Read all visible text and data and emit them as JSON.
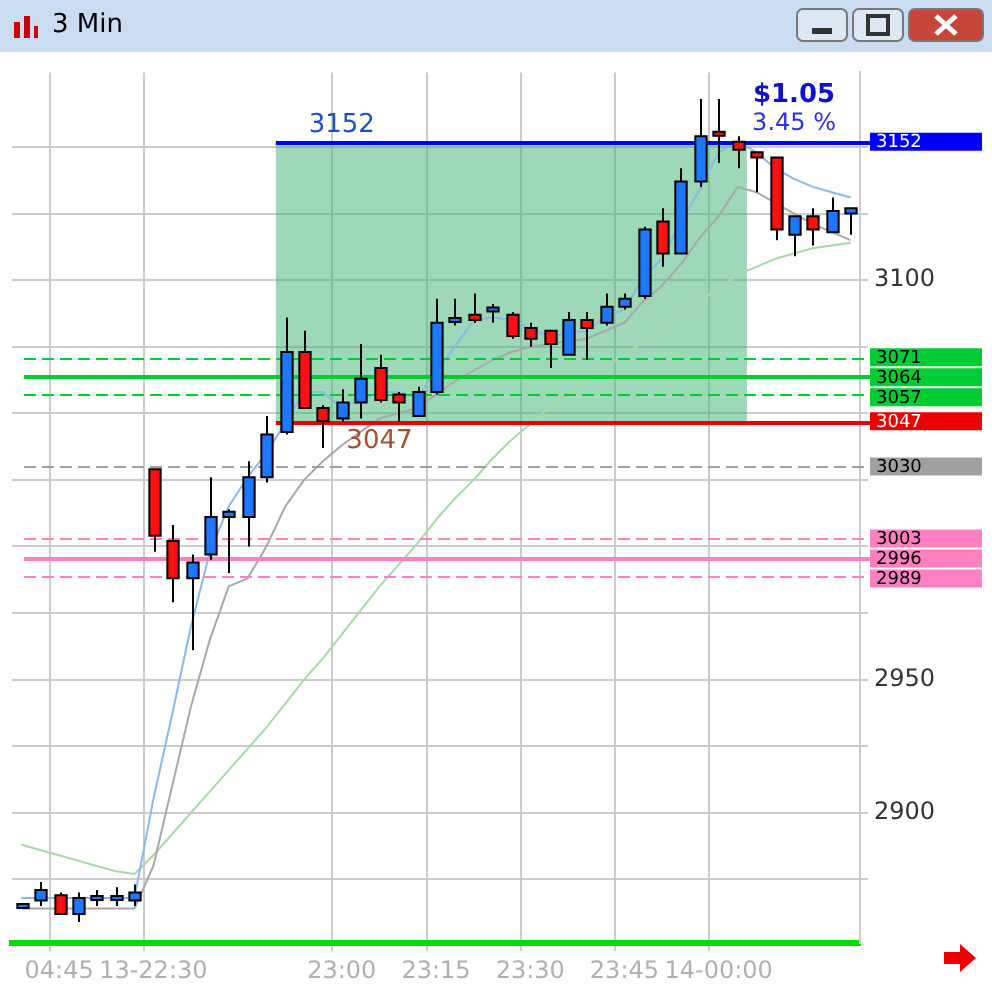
{
  "chart_data": {
    "type": "candlestick",
    "title": "3 Min",
    "categories": [
      null,
      null,
      "04:45",
      null,
      null,
      null,
      null,
      "13-22:30",
      null,
      null,
      null,
      null,
      null,
      null,
      null,
      null,
      null,
      "23:00",
      null,
      null,
      null,
      null,
      "23:15",
      null,
      null,
      null,
      null,
      "23:30",
      null,
      null,
      null,
      null,
      "23:45",
      null,
      null,
      null,
      null,
      "14-00:00",
      null,
      null,
      null,
      null,
      null,
      null,
      null
    ],
    "ohlc": [
      [
        2865,
        2866,
        2864,
        2865
      ],
      [
        2867,
        2874,
        2865,
        2871
      ],
      [
        2869,
        2870,
        2862,
        2862
      ],
      [
        2862,
        2870,
        2859,
        2868
      ],
      [
        2868,
        2871,
        2865,
        2868
      ],
      [
        2868,
        2872,
        2865,
        2868
      ],
      [
        2867,
        2873,
        2865,
        2870
      ],
      [
        3029,
        3029,
        2998,
        3004
      ],
      [
        3002,
        3008,
        2979,
        2988
      ],
      [
        2988,
        2997,
        2961,
        2994
      ],
      [
        2997,
        3026,
        2995,
        3011
      ],
      [
        3011,
        3014,
        2990,
        3013
      ],
      [
        3011,
        3032,
        3000,
        3026
      ],
      [
        3026,
        3049,
        3024,
        3042
      ],
      [
        3043,
        3086,
        3042,
        3073
      ],
      [
        3073,
        3081,
        3052,
        3052
      ],
      [
        3052,
        3053,
        3037,
        3047
      ],
      [
        3048,
        3059,
        3047,
        3054
      ],
      [
        3054,
        3076,
        3048,
        3063
      ],
      [
        3067,
        3072,
        3054,
        3055
      ],
      [
        3057,
        3058,
        3047,
        3054
      ],
      [
        3049,
        3060,
        3049,
        3058
      ],
      [
        3058,
        3093,
        3057,
        3084
      ],
      [
        3084,
        3093,
        3083,
        3085
      ],
      [
        3087,
        3095,
        3084,
        3085
      ],
      [
        3089,
        3091,
        3084,
        3089
      ],
      [
        3087,
        3088,
        3078,
        3079
      ],
      [
        3082,
        3084,
        3075,
        3078
      ],
      [
        3081,
        3081,
        3067,
        3076
      ],
      [
        3072,
        3088,
        3072,
        3085
      ],
      [
        3085,
        3088,
        3070,
        3082
      ],
      [
        3084,
        3095,
        3083,
        3090
      ],
      [
        3090,
        3095,
        3089,
        3093
      ],
      [
        3094,
        3120,
        3093,
        3119
      ],
      [
        3122,
        3127,
        3105,
        3110
      ],
      [
        3110,
        3142,
        3110,
        3137
      ],
      [
        3137,
        3168,
        3135,
        3154
      ],
      [
        3155,
        3168,
        3144,
        3154
      ],
      [
        3152,
        3154,
        3142,
        3149
      ],
      [
        3148,
        3148,
        3133,
        3146
      ],
      [
        3146,
        3146,
        3115,
        3119
      ],
      [
        3117,
        3124,
        3109,
        3124
      ],
      [
        3124,
        3127,
        3113,
        3119
      ],
      [
        3118,
        3131,
        3118,
        3126
      ],
      [
        3125,
        3127,
        3117,
        3127
      ]
    ],
    "series": [
      {
        "type": "line",
        "color": "#8ab8e8",
        "values": [
          2868,
          2868,
          2868,
          2868,
          2868,
          2868,
          2868,
          2905,
          2937,
          2970,
          2998,
          3015,
          3026,
          3035,
          null,
          3058,
          3058,
          3052,
          3055,
          3058,
          3058,
          3056,
          null,
          3075,
          3085,
          3086,
          3085,
          3082,
          3079,
          3080,
          3081,
          3086,
          3089,
          3101,
          3108,
          3122,
          3134,
          3148,
          3152,
          3148,
          3142,
          3138,
          3135,
          3133,
          3131
        ]
      },
      {
        "type": "line",
        "color": "#a8a8a8",
        "values": [
          2864,
          2864,
          2864,
          2864,
          2864,
          2864,
          2864,
          2880,
          2910,
          2940,
          2965,
          2985,
          2988,
          3000,
          3015,
          3025,
          3032,
          3038,
          3043,
          3048,
          3050,
          3052,
          3057,
          3062,
          3066,
          3070,
          3073,
          3075,
          3076,
          3077,
          3078,
          3081,
          3084,
          3092,
          3098,
          3106,
          3116,
          3124,
          3135,
          3133,
          3129,
          3125,
          3121,
          3118,
          3115
        ]
      },
      {
        "type": "line",
        "color": "#a8d8a8",
        "values": [
          2888,
          2886,
          2884,
          2882,
          2880,
          2878,
          2877,
          2884,
          2892,
          2900,
          2908,
          2916,
          2924,
          2932,
          2941,
          2950,
          2958,
          2967,
          2976,
          2985,
          2993,
          3001,
          3010,
          3018,
          3025,
          3033,
          3040,
          3046,
          3052,
          3057,
          3062,
          3067,
          3072,
          3077,
          3082,
          3087,
          3092,
          3097,
          3102,
          3105,
          3108,
          3110,
          3112,
          3113,
          3114
        ]
      }
    ],
    "ylim": [
      2851,
      3178
    ],
    "yticks": [
      {
        "value": 2875,
        "label": null
      },
      2900,
      {
        "value": 2925,
        "label": null
      },
      2950,
      {
        "value": 2975,
        "label": null
      },
      {
        "value": 3000,
        "label": null
      },
      {
        "value": 3025,
        "label": null
      },
      {
        "value": 3050,
        "label": null
      },
      {
        "value": 3075,
        "label": null
      },
      3100,
      {
        "value": 3125,
        "label": null
      },
      {
        "value": 3150,
        "label": null
      }
    ],
    "grid": true,
    "legend": false,
    "bands": [
      {
        "axis": "y",
        "from": 3047,
        "to": 3152,
        "color": "#3cb371"
      }
    ],
    "ref_lines": [
      {
        "axis": "y",
        "value": 3152,
        "label": "3152",
        "color": "#0000ff",
        "line_style": "solid"
      },
      {
        "axis": "y",
        "value": 3071,
        "label": "3071",
        "color": "#00cc33",
        "line_style": "dashed"
      },
      {
        "axis": "y",
        "value": 3064,
        "label": "3064",
        "color": "#00cc33",
        "line_style": "solid"
      },
      {
        "axis": "y",
        "value": 3057,
        "label": "3057",
        "color": "#00cc33",
        "line_style": "dashed"
      },
      {
        "axis": "y",
        "value": 3047,
        "label": "3047",
        "color": "#ee0000",
        "line_style": "solid"
      },
      {
        "axis": "y",
        "value": 3030,
        "label": "3030",
        "color": "#a0a0a0",
        "line_style": "dashed"
      },
      {
        "axis": "y",
        "value": 3003,
        "label": "3003",
        "color": "#ff80c0",
        "line_style": "dashed"
      },
      {
        "axis": "y",
        "value": 2996,
        "label": "2996",
        "color": "#ff80c0",
        "line_style": "solid"
      },
      {
        "axis": "y",
        "value": 2989,
        "label": "2989",
        "color": "#ff80c0",
        "line_style": "dashed"
      }
    ],
    "annotations": [
      {
        "text": "3152",
        "y": 3152
      },
      {
        "text": "3047",
        "y": 3047
      },
      {
        "text": "$1.05",
        "y": 3152
      },
      {
        "text": "3.45 %",
        "y": 3152
      }
    ]
  }
}
